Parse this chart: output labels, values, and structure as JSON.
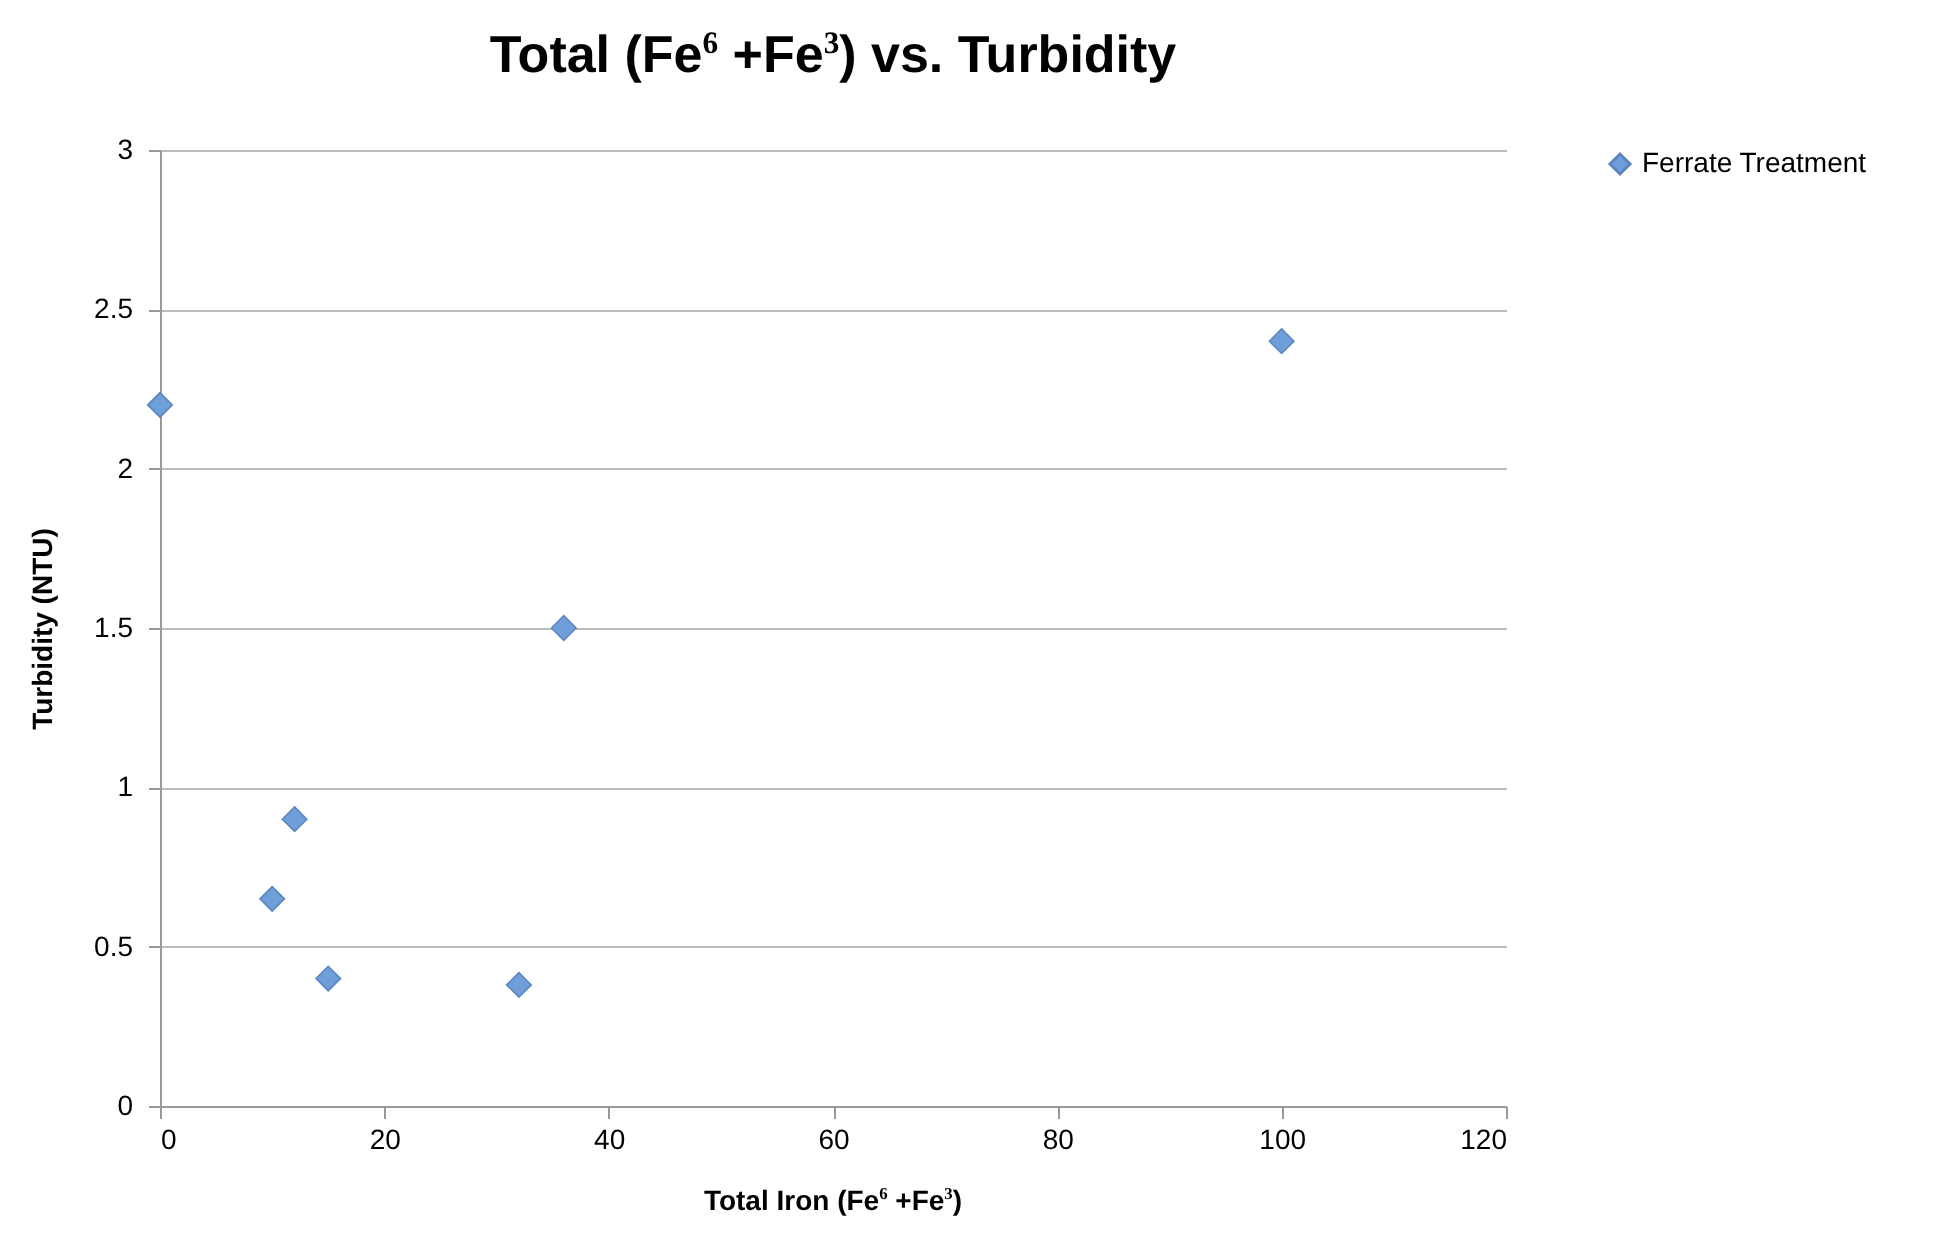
{
  "chart_data": {
    "type": "scatter",
    "title": "Total (Fe$^{6}$ +Fe$^{3}$) vs. Turbidity",
    "xlabel": "Total Iron (Fe$^{6}$ +Fe$^{3}$)",
    "ylabel": "Turbidity (NTU)",
    "xlim": [
      0,
      120
    ],
    "xticks": [
      0,
      20,
      40,
      60,
      80,
      100,
      120
    ],
    "ylim": [
      0,
      3
    ],
    "yticks": [
      0,
      0.5,
      1,
      1.5,
      2,
      2.5,
      3
    ],
    "grid": "y",
    "legend": "right",
    "marker": "diamond",
    "series": [
      {
        "name": "Ferrate Treatment",
        "color": "#6f9fdb",
        "x": [
          0,
          10,
          12,
          15,
          32,
          36,
          100
        ],
        "values": [
          2.2,
          0.65,
          0.9,
          0.4,
          0.38,
          1.5,
          2.4
        ]
      }
    ]
  }
}
